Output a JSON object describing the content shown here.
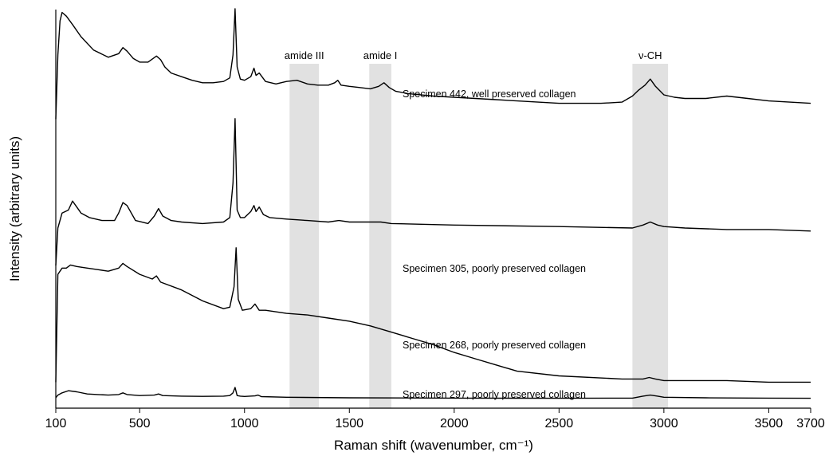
{
  "chart_data": {
    "type": "line",
    "xlabel": "Raman shift (wavenumber, cm⁻¹)",
    "ylabel": "Intensity (arbitrary units)",
    "xlim": [
      100,
      3700
    ],
    "xticks": [
      100,
      500,
      1000,
      1500,
      2000,
      2500,
      3000,
      3500,
      3700
    ],
    "y_ticks_shown": false,
    "grid": false,
    "legend": "none (series labeled inline)",
    "bands": [
      {
        "label": "amide III",
        "range": [
          1215,
          1355
        ]
      },
      {
        "label": "amide I",
        "range": [
          1595,
          1700
        ]
      },
      {
        "label": "ν-CH",
        "range": [
          2850,
          3020
        ]
      }
    ],
    "series": [
      {
        "name": "Specimen 442, well preserved collagen",
        "x": [
          100,
          110,
          120,
          130,
          150,
          180,
          220,
          280,
          350,
          400,
          420,
          440,
          470,
          500,
          540,
          580,
          600,
          620,
          650,
          700,
          750,
          800,
          850,
          900,
          930,
          945,
          955,
          965,
          980,
          1000,
          1030,
          1045,
          1055,
          1070,
          1100,
          1150,
          1200,
          1250,
          1300,
          1350,
          1400,
          1430,
          1445,
          1460,
          1500,
          1550,
          1600,
          1640,
          1665,
          1690,
          1720,
          1780,
          1900,
          2000,
          2100,
          2200,
          2300,
          2400,
          2500,
          2600,
          2700,
          2800,
          2850,
          2880,
          2910,
          2935,
          2960,
          3000,
          3050,
          3100,
          3200,
          3300,
          3400,
          3500,
          3600,
          3700
        ],
        "y": [
          7,
          60,
          88,
          95,
          92,
          85,
          75,
          64,
          58,
          61,
          66,
          63,
          57,
          54,
          54,
          59,
          56,
          50,
          45,
          42,
          39,
          37,
          37,
          38,
          41,
          60,
          98,
          50,
          40,
          39,
          42,
          49,
          43,
          45,
          38,
          36,
          38,
          39,
          36,
          35,
          35,
          37,
          39,
          35,
          34,
          33,
          32,
          34,
          37,
          33,
          30,
          28,
          26,
          25,
          24,
          23,
          22,
          21,
          20,
          20,
          20,
          21,
          26,
          31,
          35,
          40,
          34,
          27,
          25,
          24,
          24,
          26,
          24,
          22,
          21,
          20
        ]
      },
      {
        "name": "Specimen 305, poorly preserved collagen",
        "x": [
          100,
          110,
          130,
          160,
          180,
          200,
          220,
          260,
          320,
          380,
          400,
          420,
          440,
          480,
          540,
          570,
          590,
          610,
          650,
          700,
          800,
          900,
          930,
          945,
          955,
          965,
          980,
          1000,
          1030,
          1045,
          1055,
          1070,
          1090,
          1120,
          1200,
          1300,
          1400,
          1450,
          1500,
          1650,
          1700,
          2000,
          2500,
          2850,
          2900,
          2935,
          2970,
          3000,
          3100,
          3300,
          3500,
          3700
        ],
        "y": [
          17,
          42,
          52,
          54,
          60,
          56,
          52,
          49,
          47,
          47,
          52,
          59,
          57,
          47,
          45,
          50,
          55,
          50,
          47,
          46,
          45,
          46,
          49,
          72,
          115,
          54,
          49,
          49,
          53,
          57,
          53,
          56,
          51,
          49,
          48,
          47,
          46,
          47,
          46,
          46,
          45,
          44,
          43,
          42,
          44,
          46,
          44,
          43,
          42,
          41,
          41,
          40
        ]
      },
      {
        "name": "Specimen 268, poorly preserved collagen",
        "x": [
          100,
          110,
          130,
          150,
          170,
          200,
          250,
          300,
          350,
          400,
          420,
          440,
          500,
          560,
          580,
          600,
          700,
          800,
          900,
          930,
          950,
          960,
          970,
          990,
          1030,
          1050,
          1070,
          1100,
          1200,
          1300,
          1400,
          1500,
          1600,
          1700,
          1800,
          1900,
          2000,
          2100,
          2200,
          2300,
          2500,
          2800,
          2900,
          2930,
          2960,
          3000,
          3100,
          3300,
          3500,
          3700
        ],
        "y": [
          9,
          78,
          82,
          82,
          84,
          83,
          82,
          81,
          80,
          82,
          85,
          83,
          78,
          75,
          77,
          73,
          68,
          61,
          56,
          57,
          70,
          95,
          62,
          55,
          56,
          59,
          55,
          55,
          53,
          52,
          50,
          48,
          45,
          41,
          37,
          33,
          28,
          24,
          20,
          16,
          13,
          11,
          11,
          12,
          11,
          10,
          10,
          10,
          9,
          9
        ]
      },
      {
        "name": "Specimen 297, poorly preserved collagen",
        "x": [
          100,
          110,
          130,
          160,
          200,
          250,
          300,
          350,
          400,
          420,
          440,
          500,
          570,
          590,
          610,
          700,
          800,
          900,
          930,
          945,
          955,
          965,
          980,
          1000,
          1050,
          1065,
          1080,
          1200,
          1500,
          2000,
          2500,
          2850,
          2900,
          2935,
          2970,
          3000,
          3200,
          3500,
          3700
        ],
        "y": [
          1.5,
          4,
          6,
          8,
          7,
          5,
          4.5,
          4,
          4.5,
          6,
          4.5,
          3.5,
          4,
          5,
          3.5,
          3,
          2.8,
          3,
          3.5,
          6,
          11,
          3.5,
          3,
          2.7,
          3.2,
          4,
          2.6,
          2,
          1.5,
          1.2,
          1,
          1.2,
          3,
          4,
          3,
          2,
          1.5,
          1.2,
          1
        ]
      }
    ]
  }
}
